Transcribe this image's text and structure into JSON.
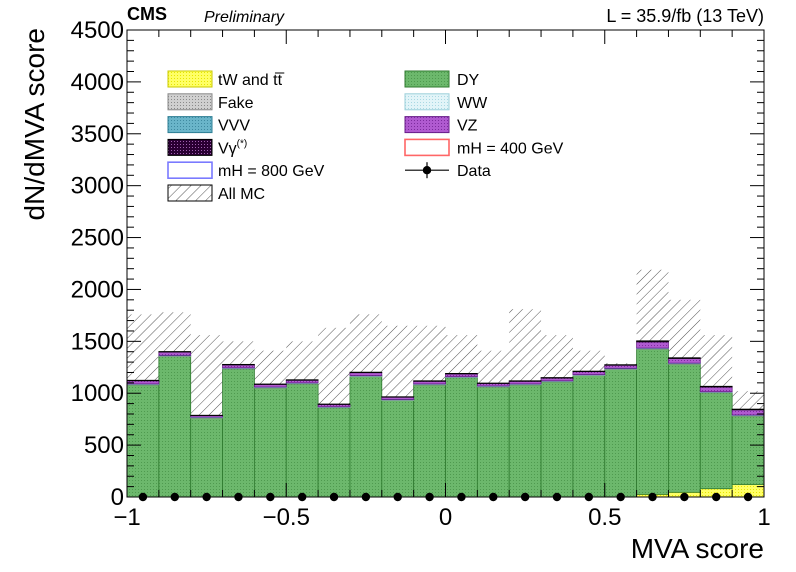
{
  "header": {
    "experiment": "CMS",
    "status": "Preliminary",
    "lumi": "L = 35.9/fb (13 TeV)"
  },
  "chart_data": {
    "type": "bar",
    "subtype": "stacked-histogram",
    "xlabel": "MVA score",
    "ylabel": "dN/dMVA score",
    "xlim": [
      -1,
      1
    ],
    "ylim": [
      0,
      4500
    ],
    "xticks": [
      "−1",
      "−0.5",
      "0",
      "0.5",
      "1"
    ],
    "yticks": [
      "0",
      "500",
      "1000",
      "1500",
      "2000",
      "2500",
      "3000",
      "3500",
      "4000",
      "4500"
    ],
    "bin_edges": [
      -1.0,
      -0.9,
      -0.8,
      -0.7,
      -0.6,
      -0.5,
      -0.4,
      -0.3,
      -0.2,
      -0.1,
      0.0,
      0.1,
      0.2,
      0.3,
      0.4,
      0.5,
      0.6,
      0.7,
      0.8,
      0.9,
      1.0
    ],
    "legend_position": "top-left",
    "legend": [
      {
        "label": "tW and tt̅",
        "key": "tW"
      },
      {
        "label": "DY",
        "key": "DY"
      },
      {
        "label": "Fake",
        "key": "Fake"
      },
      {
        "label": "WW",
        "key": "WW"
      },
      {
        "label": "VVV",
        "key": "VVV"
      },
      {
        "label": "VZ",
        "key": "VZ"
      },
      {
        "label": "Vγ",
        "label_sup": "(*)",
        "key": "Vg"
      },
      {
        "label": "mH = 400 GeV",
        "key": "mH400"
      },
      {
        "label": "mH = 800 GeV",
        "key": "mH800"
      },
      {
        "label": "Data",
        "key": "Data"
      },
      {
        "label": "All MC",
        "key": "AllMC"
      }
    ],
    "colors": {
      "tW": "#ffff66",
      "DY": "#66b266",
      "Fake": "#bfbfbf",
      "WW": "#d6f0f5",
      "VVV": "#6ab5c9",
      "VZ": "#a64dc8",
      "Vg": "#5c0a6e",
      "mH400": "#ff6666",
      "mH800": "#7a7aff",
      "Data": "#000000",
      "AllMC": "#555555"
    },
    "series": [
      {
        "name": "tW and tt̅",
        "key": "tW",
        "values": [
          0,
          0,
          0,
          0,
          0,
          0,
          0,
          0,
          0,
          0,
          0,
          0,
          0,
          0,
          0,
          0,
          25,
          45,
          80,
          120
        ]
      },
      {
        "name": "DY",
        "key": "DY",
        "values": [
          1080,
          1355,
          760,
          1235,
          1050,
          1090,
          860,
          1160,
          930,
          1080,
          1150,
          1060,
          1080,
          1110,
          1170,
          1230,
          1400,
          1235,
          925,
          660
        ]
      },
      {
        "name": "Fake",
        "key": "Fake",
        "values": [
          5,
          5,
          5,
          5,
          5,
          5,
          5,
          5,
          5,
          5,
          5,
          5,
          5,
          5,
          5,
          5,
          5,
          5,
          5,
          5
        ]
      },
      {
        "name": "WW",
        "key": "WW",
        "values": [
          3,
          3,
          3,
          3,
          3,
          3,
          3,
          3,
          3,
          3,
          3,
          3,
          3,
          3,
          3,
          3,
          3,
          3,
          3,
          3
        ]
      },
      {
        "name": "VVV",
        "key": "VVV",
        "values": [
          2,
          2,
          2,
          2,
          2,
          2,
          2,
          2,
          2,
          2,
          2,
          2,
          2,
          2,
          2,
          2,
          2,
          2,
          2,
          2
        ]
      },
      {
        "name": "VZ",
        "key": "VZ",
        "values": [
          30,
          32,
          15,
          28,
          25,
          25,
          22,
          28,
          22,
          25,
          26,
          24,
          25,
          26,
          28,
          30,
          60,
          45,
          45,
          50
        ]
      },
      {
        "name": "Vγ",
        "key": "Vg",
        "values": [
          5,
          5,
          3,
          5,
          4,
          5,
          4,
          5,
          4,
          5,
          5,
          4,
          5,
          5,
          5,
          5,
          10,
          7,
          7,
          7
        ]
      }
    ],
    "all_mc_band": {
      "name": "All MC",
      "low": [
        500,
        1000,
        0,
        1000,
        600,
        700,
        400,
        800,
        600,
        800,
        900,
        700,
        550,
        800,
        950,
        1000,
        850,
        700,
        0,
        700
      ],
      "high": [
        1760,
        1780,
        1560,
        1500,
        1410,
        1500,
        1630,
        1760,
        1650,
        1650,
        1560,
        1410,
        1810,
        1560,
        1410,
        1290,
        2190,
        1900,
        1560,
        1020
      ]
    },
    "data": {
      "name": "Data",
      "x": [
        -0.95,
        -0.85,
        -0.75,
        -0.65,
        -0.55,
        -0.45,
        -0.35,
        -0.25,
        -0.15,
        -0.05,
        0.05,
        0.15,
        0.25,
        0.35,
        0.45,
        0.55,
        0.65,
        0.75,
        0.85,
        0.95
      ],
      "y": [
        0,
        0,
        0,
        0,
        0,
        0,
        0,
        0,
        0,
        0,
        0,
        0,
        0,
        0,
        0,
        0,
        0,
        0,
        0,
        0
      ]
    }
  }
}
